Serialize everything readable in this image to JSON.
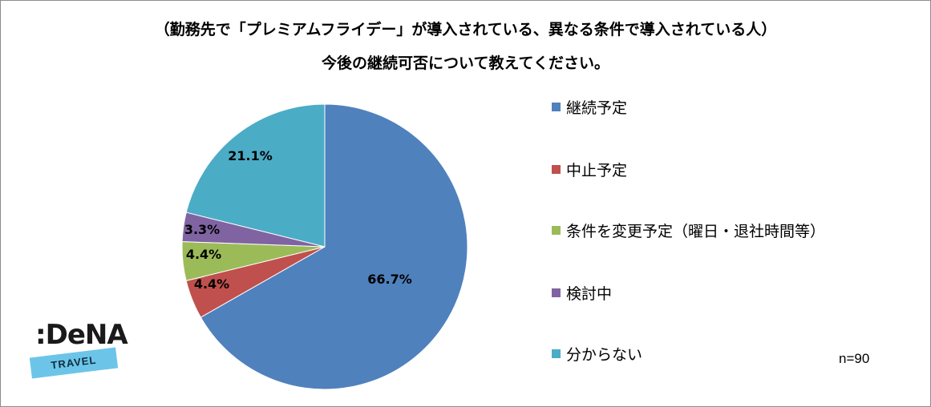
{
  "title_line1": "（勤務先で「プレミアムフライデー」が導入されている、異なる条件で導入されている人）",
  "title_line2": "今後の継続可否について教えてください。",
  "n_label": "n=90",
  "logo": {
    "main": ":DeNA",
    "sub": "TRAVEL"
  },
  "chart_data": {
    "type": "pie",
    "title": "（勤務先で「プレミアムフライデー」が導入されている、異なる条件で導入されている人） 今後の継続可否について教えてください。",
    "slices": [
      {
        "label": "継続予定",
        "value": 66.7,
        "display": "66.7%",
        "color": "#4f81bd"
      },
      {
        "label": "中止予定",
        "value": 4.4,
        "display": "4.4%",
        "color": "#c0504d"
      },
      {
        "label": "条件を変更予定（曜日・退社時間等）",
        "value": 4.4,
        "display": "4.4%",
        "color": "#9bbb59"
      },
      {
        "label": "検討中",
        "value": 3.3,
        "display": "3.3%",
        "color": "#8064a2"
      },
      {
        "label": "分からない",
        "value": 21.1,
        "display": "21.1%",
        "color": "#4bacc6"
      }
    ],
    "legend_position": "right",
    "start": "12 o'clock",
    "direction": "clockwise",
    "sample_size": "n=90"
  }
}
